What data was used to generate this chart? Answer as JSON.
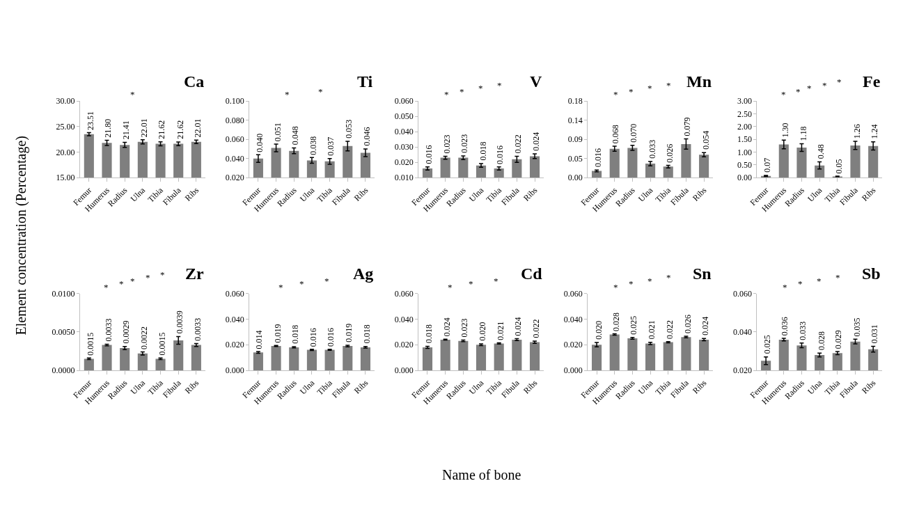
{
  "chart_data": [
    {
      "type": "bar",
      "title": "Ca",
      "ylabel": "Element concentration (Percentage)",
      "categories": [
        "Femur",
        "Humerus",
        "Radius",
        "Ulna",
        "Tibia",
        "Fibula",
        "Ribs"
      ],
      "color": "#7f7f7f",
      "values": [
        23.51,
        21.8,
        21.41,
        22.01,
        21.62,
        21.62,
        22.01
      ],
      "value_labels": [
        "23.51",
        "21.80",
        "21.41",
        "22.01",
        "21.62",
        "21.62",
        "22.01"
      ],
      "errors": [
        0.3,
        0.5,
        0.5,
        0.4,
        0.4,
        0.35,
        0.35
      ],
      "ylim": [
        15,
        30
      ],
      "yticks": [
        {
          "value": 15,
          "label": "15.00"
        },
        {
          "value": 20,
          "label": "20.00"
        },
        {
          "value": 25,
          "label": "25.00"
        },
        {
          "value": 30,
          "label": "30.00"
        }
      ],
      "grid": false,
      "annotations": [
        "*"
      ]
    },
    {
      "type": "bar",
      "title": "Ti",
      "categories": [
        "Femur",
        "Humerus",
        "Radius",
        "Ulna",
        "Tibia",
        "Fibula",
        "Ribs"
      ],
      "color": "#7f7f7f",
      "values": [
        0.04,
        0.051,
        0.048,
        0.038,
        0.037,
        0.053,
        0.046
      ],
      "value_labels": [
        "0.040",
        "0.051",
        "0.048",
        "0.038",
        "0.037",
        "0.053",
        "0.046"
      ],
      "errors": [
        0.004,
        0.004,
        0.003,
        0.003,
        0.003,
        0.005,
        0.004
      ],
      "ylim": [
        0.02,
        0.1
      ],
      "yticks": [
        {
          "value": 0.02,
          "label": "0.020"
        },
        {
          "value": 0.04,
          "label": "0.040"
        },
        {
          "value": 0.06,
          "label": "0.060"
        },
        {
          "value": 0.08,
          "label": "0.080"
        },
        {
          "value": 0.1,
          "label": "0.100"
        }
      ],
      "grid": false,
      "annotations": [
        "*",
        "*"
      ]
    },
    {
      "type": "bar",
      "title": "V",
      "categories": [
        "Femur",
        "Humerus",
        "Radius",
        "Ulna",
        "Tibia",
        "Fibula",
        "Ribs"
      ],
      "color": "#7f7f7f",
      "values": [
        0.016,
        0.023,
        0.023,
        0.018,
        0.016,
        0.022,
        0.024
      ],
      "value_labels": [
        "0.016",
        "0.023",
        "0.023",
        "0.018",
        "0.016",
        "0.022",
        "0.024"
      ],
      "errors": [
        0.001,
        0.001,
        0.0012,
        0.0012,
        0.001,
        0.002,
        0.0015
      ],
      "ylim": [
        0.01,
        0.06
      ],
      "yticks": [
        {
          "value": 0.01,
          "label": "0.010"
        },
        {
          "value": 0.02,
          "label": "0.020"
        },
        {
          "value": 0.03,
          "label": "0.030"
        },
        {
          "value": 0.04,
          "label": "0.040"
        },
        {
          "value": 0.05,
          "label": "0.050"
        },
        {
          "value": 0.06,
          "label": "0.060"
        }
      ],
      "grid": false,
      "annotations": [
        "*",
        "*",
        "*",
        "*"
      ]
    },
    {
      "type": "bar",
      "title": "Mn",
      "categories": [
        "Femur",
        "Humerus",
        "Radius",
        "Ulna",
        "Tibia",
        "Fibula",
        "Ribs"
      ],
      "color": "#7f7f7f",
      "values": [
        0.016,
        0.068,
        0.07,
        0.033,
        0.026,
        0.079,
        0.054
      ],
      "value_labels": [
        "0.016",
        "0.068",
        "0.070",
        "0.033",
        "0.026",
        "0.079",
        "0.054"
      ],
      "errors": [
        0.002,
        0.006,
        0.006,
        0.005,
        0.003,
        0.012,
        0.005
      ],
      "ylim": [
        0,
        0.18
      ],
      "yticks": [
        {
          "value": 0,
          "label": "0.00"
        },
        {
          "value": 0.045,
          "label": "0.05"
        },
        {
          "value": 0.09,
          "label": "0.09"
        },
        {
          "value": 0.135,
          "label": "0.14"
        },
        {
          "value": 0.18,
          "label": "0.18"
        }
      ],
      "grid": false,
      "annotations": [
        "*",
        "*",
        "*",
        "*"
      ]
    },
    {
      "type": "bar",
      "title": "Fe",
      "categories": [
        "Femur",
        "Humerus",
        "Radius",
        "Ulna",
        "Tibia",
        "Fibula",
        "Ribs"
      ],
      "color": "#7f7f7f",
      "values": [
        0.07,
        1.3,
        1.18,
        0.48,
        0.05,
        1.26,
        1.24
      ],
      "value_labels": [
        "0.07",
        "1.30",
        "1.18",
        "0.48",
        "0.05",
        "1.26",
        "1.24"
      ],
      "errors": [
        0.02,
        0.17,
        0.15,
        0.14,
        0.01,
        0.16,
        0.16
      ],
      "ylim": [
        0,
        3
      ],
      "yticks": [
        {
          "value": 0,
          "label": "0.00"
        },
        {
          "value": 0.5,
          "label": "0.50"
        },
        {
          "value": 1,
          "label": "1.00"
        },
        {
          "value": 1.5,
          "label": "1.50"
        },
        {
          "value": 2,
          "label": "2.00"
        },
        {
          "value": 2.5,
          "label": "2.50"
        },
        {
          "value": 3,
          "label": "3.00"
        }
      ],
      "grid": false,
      "annotations": [
        "*",
        "*",
        "*",
        "*",
        "*"
      ]
    },
    {
      "type": "bar",
      "title": "Zr",
      "categories": [
        "Femur",
        "Humerus",
        "Radius",
        "Ulna",
        "Tibia",
        "Fibula",
        "Ribs"
      ],
      "color": "#7f7f7f",
      "values": [
        0.0015,
        0.0033,
        0.0029,
        0.0022,
        0.0015,
        0.0039,
        0.0033
      ],
      "value_labels": [
        "0.0015",
        "0.0033",
        "0.0029",
        "0.0022",
        "0.0015",
        "0.0039",
        "0.0033"
      ],
      "errors": [
        0.0001,
        0.0001,
        0.0002,
        0.0002,
        0.0001,
        0.0005,
        0.0002
      ],
      "ylim": [
        0,
        0.01
      ],
      "yticks": [
        {
          "value": 0,
          "label": "0.0000"
        },
        {
          "value": 0.005,
          "label": "0.0050"
        },
        {
          "value": 0.01,
          "label": "0.0100"
        }
      ],
      "grid": false,
      "annotations": [
        "*",
        "*",
        "*",
        "*",
        "*"
      ]
    },
    {
      "type": "bar",
      "title": "Ag",
      "categories": [
        "Femur",
        "Humerus",
        "Radius",
        "Ulna",
        "Tibia",
        "Fibula",
        "Ribs"
      ],
      "color": "#7f7f7f",
      "values": [
        0.014,
        0.019,
        0.018,
        0.016,
        0.016,
        0.019,
        0.018
      ],
      "value_labels": [
        "0.014",
        "0.019",
        "0.018",
        "0.016",
        "0.016",
        "0.019",
        "0.018"
      ],
      "errors": [
        0.0007,
        0.0004,
        0.0005,
        0.0005,
        0.0004,
        0.0006,
        0.0006
      ],
      "ylim": [
        0,
        0.06
      ],
      "yticks": [
        {
          "value": 0,
          "label": "0.000"
        },
        {
          "value": 0.02,
          "label": "0.020"
        },
        {
          "value": 0.04,
          "label": "0.040"
        },
        {
          "value": 0.06,
          "label": "0.060"
        }
      ],
      "grid": false,
      "annotations": [
        "*",
        "*",
        "*"
      ]
    },
    {
      "type": "bar",
      "title": "Cd",
      "xlabel": "Name of bone",
      "categories": [
        "Femur",
        "Humerus",
        "Radius",
        "Ulna",
        "Tibia",
        "Fibula",
        "Ribs"
      ],
      "color": "#7f7f7f",
      "values": [
        0.018,
        0.024,
        0.023,
        0.02,
        0.021,
        0.024,
        0.022
      ],
      "value_labels": [
        "0.018",
        "0.024",
        "0.023",
        "0.020",
        "0.021",
        "0.024",
        "0.022"
      ],
      "errors": [
        0.0008,
        0.0004,
        0.0006,
        0.0007,
        0.0005,
        0.0007,
        0.0009
      ],
      "ylim": [
        0,
        0.06
      ],
      "yticks": [
        {
          "value": 0,
          "label": "0.000"
        },
        {
          "value": 0.02,
          "label": "0.020"
        },
        {
          "value": 0.04,
          "label": "0.040"
        },
        {
          "value": 0.06,
          "label": "0.060"
        }
      ],
      "grid": false,
      "annotations": [
        "*",
        "*",
        "*"
      ]
    },
    {
      "type": "bar",
      "title": "Sn",
      "categories": [
        "Femur",
        "Humerus",
        "Radius",
        "Ulna",
        "Tibia",
        "Fibula",
        "Ribs"
      ],
      "color": "#7f7f7f",
      "values": [
        0.02,
        0.028,
        0.025,
        0.021,
        0.022,
        0.026,
        0.024
      ],
      "value_labels": [
        "0.020",
        "0.028",
        "0.025",
        "0.021",
        "0.022",
        "0.026",
        "0.024"
      ],
      "errors": [
        0.0017,
        0.0005,
        0.0007,
        0.0009,
        0.0005,
        0.0006,
        0.0009
      ],
      "ylim": [
        0,
        0.06
      ],
      "yticks": [
        {
          "value": 0,
          "label": "0.000"
        },
        {
          "value": 0.02,
          "label": "0.020"
        },
        {
          "value": 0.04,
          "label": "0.040"
        },
        {
          "value": 0.06,
          "label": "0.060"
        }
      ],
      "grid": false,
      "annotations": [
        "*",
        "*",
        "*",
        "*"
      ]
    },
    {
      "type": "bar",
      "title": "Sb",
      "categories": [
        "Femur",
        "Humerus",
        "Radius",
        "Ulna",
        "Tibia",
        "Fibula",
        "Ribs"
      ],
      "color": "#7f7f7f",
      "values": [
        0.025,
        0.036,
        0.033,
        0.028,
        0.029,
        0.035,
        0.031
      ],
      "value_labels": [
        "0.025",
        "0.036",
        "0.033",
        "0.028",
        "0.029",
        "0.035",
        "0.031"
      ],
      "errors": [
        0.002,
        0.0007,
        0.0012,
        0.001,
        0.0008,
        0.0012,
        0.0015
      ],
      "ylim": [
        0.02,
        0.06
      ],
      "yticks": [
        {
          "value": 0.02,
          "label": "0.020"
        },
        {
          "value": 0.04,
          "label": "0.040"
        },
        {
          "value": 0.06,
          "label": "0.060"
        }
      ],
      "grid": false,
      "annotations": [
        "*",
        "*",
        "*",
        "*"
      ]
    }
  ]
}
